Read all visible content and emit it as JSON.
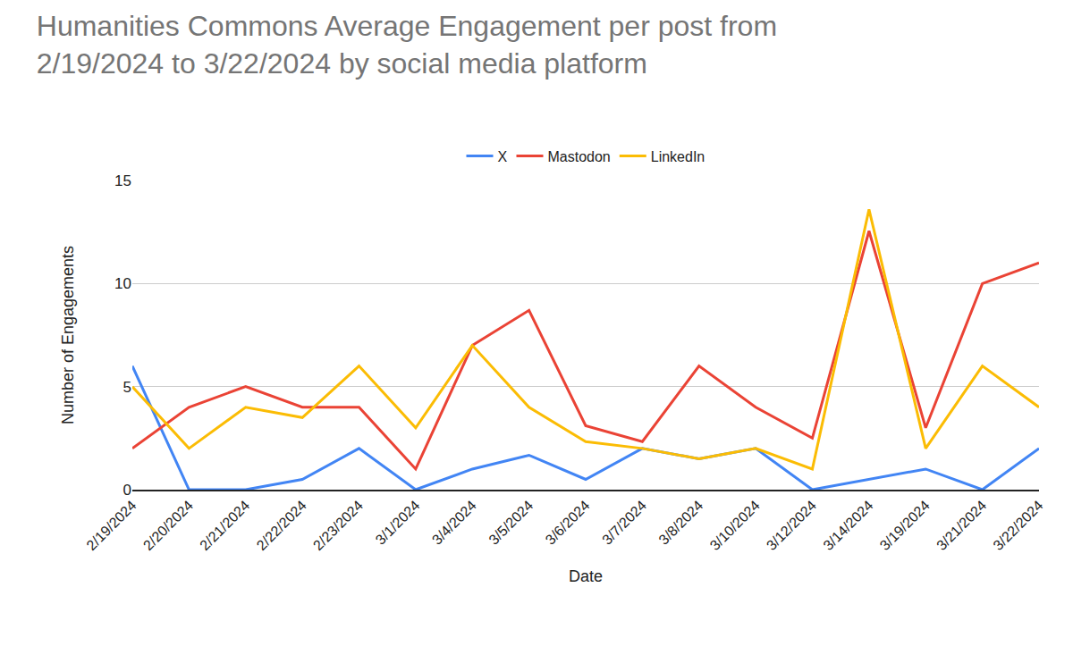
{
  "chart_data": {
    "type": "line",
    "title": "Humanities Commons Average Engagement per post from\n2/19/2024 to 3/22/2024 by social media platform",
    "x_label": "Date",
    "y_label": "Number of Engagements",
    "categories": [
      "2/19/2024",
      "2/20/2024",
      "2/21/2024",
      "2/22/2024",
      "2/23/2024",
      "3/1/2024",
      "3/4/2024",
      "3/5/2024",
      "3/6/2024",
      "3/7/2024",
      "3/8/2024",
      "3/10/2024",
      "3/12/2024",
      "3/14/2024",
      "3/19/2024",
      "3/21/2024",
      "3/22/2024"
    ],
    "series": [
      {
        "name": "X",
        "color": "#4285f4",
        "line_style": "solid",
        "values": [
          6,
          0,
          0,
          0.5,
          2,
          0,
          1,
          1.67,
          0.5,
          2,
          1.5,
          2,
          0,
          0.5,
          1,
          0,
          2
        ]
      },
      {
        "name": "Mastodon",
        "color": "#ea4335",
        "line_style": "solid",
        "values": [
          2,
          4,
          5,
          4,
          4,
          1,
          7,
          8.7,
          3.1,
          2.33,
          6,
          4,
          2.5,
          12.55,
          3,
          10,
          11
        ]
      },
      {
        "name": "LinkedIn",
        "color": "#fbbc04",
        "line_style": "solid",
        "values": [
          5,
          2,
          4,
          3.5,
          6,
          3,
          7,
          4,
          2.33,
          2,
          1.5,
          2,
          1,
          13.6,
          2,
          6,
          4
        ]
      }
    ],
    "ylim": [
      0,
      15
    ],
    "yticks": [
      0,
      5,
      10,
      15
    ],
    "grid": true,
    "legend": "top"
  }
}
